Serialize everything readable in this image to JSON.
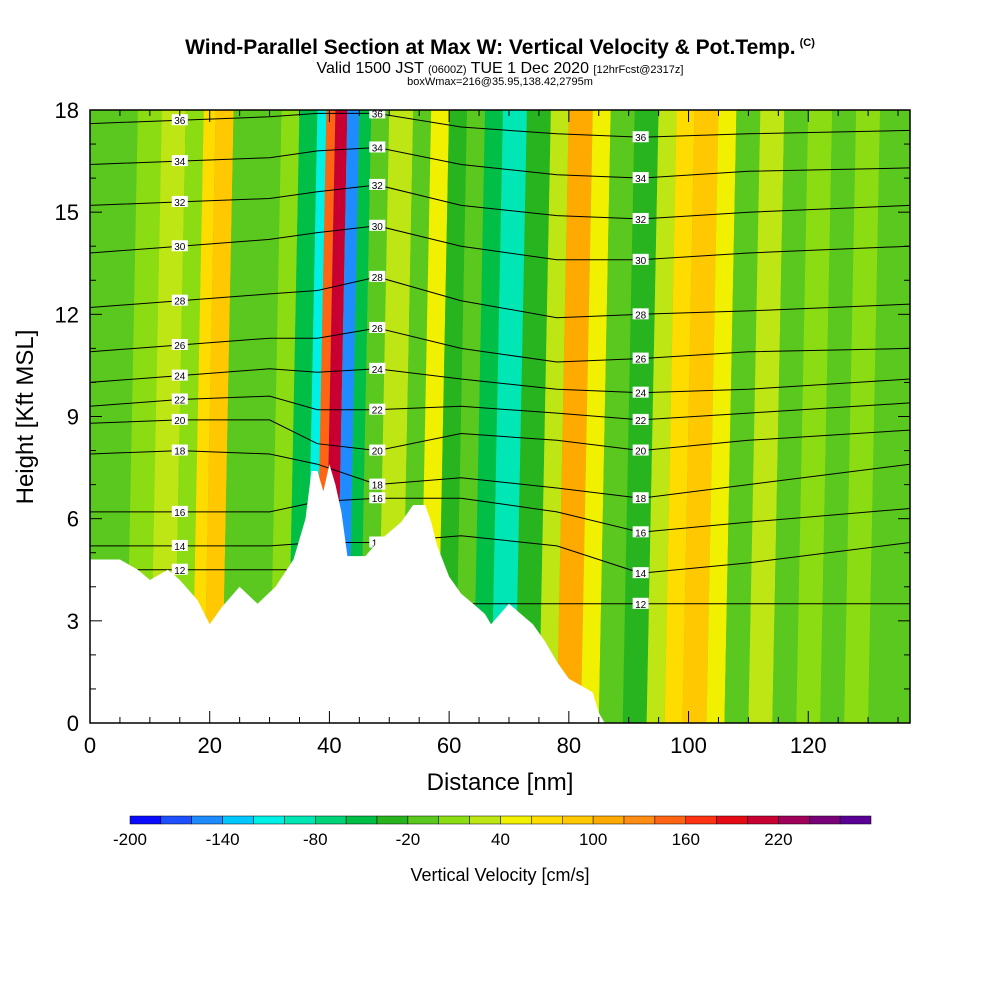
{
  "title": {
    "main": "Wind-Parallel Section at Max W: Vertical Velocity & Pot.Temp.",
    "copyright": "(C)",
    "valid_prefix": "Valid 1500 JST",
    "valid_utc": "(0600Z)",
    "valid_date": "TUE 1 Dec 2020",
    "forecast": "[12hrFcst@2317z]",
    "box_info": "boxWmax=216@35.95,138.42,2795m"
  },
  "colorbar": {
    "label": "Vertical Velocity [cm/s]",
    "tick_labels": [
      "-200",
      "-140",
      "-80",
      "-20",
      "40",
      "100",
      "160",
      "220"
    ],
    "colors": [
      "#0a0aff",
      "#1e50ff",
      "#1e8cff",
      "#00c8ff",
      "#00f0e6",
      "#00e6b4",
      "#00d278",
      "#00be46",
      "#28b41e",
      "#5ac81e",
      "#8cdc14",
      "#bee614",
      "#f0f000",
      "#ffdc00",
      "#ffc800",
      "#ffaa00",
      "#ff8c14",
      "#ff6414",
      "#ff3214",
      "#e60a14",
      "#c80032",
      "#a0005a",
      "#780078",
      "#5a0096"
    ]
  },
  "chart_data": {
    "type": "heatmap",
    "xlabel": "Distance [nm]",
    "ylabel": "Height [Kft MSL]",
    "xlim": [
      0,
      137
    ],
    "ylim": [
      0,
      18
    ],
    "xticks": [
      0,
      20,
      40,
      60,
      80,
      100,
      120
    ],
    "yticks": [
      0,
      3,
      6,
      9,
      12,
      15,
      18
    ],
    "terrain": [
      [
        0,
        4.8
      ],
      [
        5,
        4.8
      ],
      [
        8,
        4.5
      ],
      [
        10,
        4.2
      ],
      [
        13,
        4.5
      ],
      [
        15,
        4.2
      ],
      [
        18,
        3.6
      ],
      [
        20,
        2.9
      ],
      [
        22,
        3.4
      ],
      [
        25,
        4.0
      ],
      [
        28,
        3.5
      ],
      [
        31,
        4.0
      ],
      [
        34,
        4.8
      ],
      [
        36,
        6.0
      ],
      [
        37,
        7.4
      ],
      [
        38,
        7.4
      ],
      [
        39,
        6.8
      ],
      [
        40,
        7.6
      ],
      [
        41,
        7.0
      ],
      [
        42,
        6.2
      ],
      [
        43,
        4.9
      ],
      [
        46,
        4.9
      ],
      [
        48,
        5.3
      ],
      [
        50,
        5.6
      ],
      [
        52,
        5.9
      ],
      [
        54,
        6.4
      ],
      [
        56,
        6.4
      ],
      [
        57,
        5.9
      ],
      [
        58,
        5.2
      ],
      [
        60,
        4.3
      ],
      [
        62,
        3.8
      ],
      [
        64,
        3.5
      ],
      [
        66,
        3.2
      ],
      [
        67,
        2.9
      ],
      [
        69,
        3.3
      ],
      [
        70,
        3.5
      ],
      [
        72,
        3.2
      ],
      [
        74,
        2.9
      ],
      [
        76,
        2.4
      ],
      [
        78,
        1.8
      ],
      [
        80,
        1.3
      ],
      [
        82,
        1.1
      ],
      [
        84,
        0.9
      ],
      [
        85,
        0.3
      ],
      [
        86,
        0
      ],
      [
        0,
        0
      ]
    ],
    "theta_contours": [
      {
        "label": "12",
        "y": [
          4.5,
          4.5,
          4.5,
          4.5,
          4.0,
          3.5,
          3.5,
          3.5,
          3.5,
          3.5
        ]
      },
      {
        "label": "14",
        "y": [
          5.2,
          5.2,
          5.2,
          5.3,
          5.3,
          5.5,
          5.2,
          4.4,
          4.7,
          5.3
        ]
      },
      {
        "label": "16",
        "y": [
          6.2,
          6.2,
          6.2,
          6.5,
          6.6,
          6.6,
          6.2,
          5.6,
          5.9,
          6.3
        ]
      },
      {
        "label": "18",
        "y": [
          7.9,
          8.0,
          7.9,
          7.6,
          7.0,
          7.2,
          6.9,
          6.6,
          7.0,
          7.6
        ]
      },
      {
        "label": "20",
        "y": [
          8.8,
          8.9,
          8.9,
          8.2,
          8.0,
          8.5,
          8.3,
          8.0,
          8.3,
          8.6
        ]
      },
      {
        "label": "22",
        "y": [
          9.3,
          9.5,
          9.6,
          9.2,
          9.2,
          9.3,
          9.1,
          8.9,
          9.1,
          9.4
        ]
      },
      {
        "label": "24",
        "y": [
          10.0,
          10.2,
          10.4,
          10.3,
          10.4,
          10.1,
          9.8,
          9.7,
          9.8,
          10.1
        ]
      },
      {
        "label": "26",
        "y": [
          10.9,
          11.1,
          11.3,
          11.3,
          11.6,
          11.0,
          10.6,
          10.7,
          10.9,
          11.0
        ]
      },
      {
        "label": "28",
        "y": [
          12.2,
          12.4,
          12.6,
          12.7,
          13.1,
          12.4,
          11.9,
          12.0,
          12.1,
          12.3
        ]
      },
      {
        "label": "30",
        "y": [
          13.8,
          14.0,
          14.2,
          14.4,
          14.6,
          14.0,
          13.6,
          13.6,
          13.8,
          14.0
        ]
      },
      {
        "label": "32",
        "y": [
          15.2,
          15.3,
          15.4,
          15.6,
          15.8,
          15.2,
          14.9,
          14.8,
          15.0,
          15.2
        ]
      },
      {
        "label": "34",
        "y": [
          16.4,
          16.5,
          16.6,
          16.8,
          16.9,
          16.4,
          16.1,
          16.0,
          16.2,
          16.3
        ]
      },
      {
        "label": "36",
        "y": [
          17.6,
          17.7,
          17.8,
          17.9,
          17.9,
          17.5,
          17.3,
          17.2,
          17.3,
          17.4
        ]
      }
    ],
    "contour_x": [
      0,
      15,
      30,
      38,
      48,
      62,
      78,
      92,
      110,
      137
    ],
    "w_bands": [
      {
        "x0": 0,
        "x1": 8,
        "w": -10
      },
      {
        "x0": 8,
        "x1": 12,
        "w": 5
      },
      {
        "x0": 12,
        "x1": 16,
        "w": 30
      },
      {
        "x0": 16,
        "x1": 19,
        "w": 10
      },
      {
        "x0": 19,
        "x1": 21,
        "w": 60
      },
      {
        "x0": 21,
        "x1": 24,
        "w": 90
      },
      {
        "x0": 24,
        "x1": 27,
        "w": -20
      },
      {
        "x0": 27,
        "x1": 32,
        "w": -10
      },
      {
        "x0": 32,
        "x1": 35,
        "w": 15
      },
      {
        "x0": 35,
        "x1": 38,
        "w": -50
      },
      {
        "x0": 38,
        "x1": 39.5,
        "w": -120
      },
      {
        "x0": 39.5,
        "x1": 41,
        "w": 150
      },
      {
        "x0": 41,
        "x1": 43,
        "w": 216
      },
      {
        "x0": 43,
        "x1": 45,
        "w": -150
      },
      {
        "x0": 45,
        "x1": 47,
        "w": -60
      },
      {
        "x0": 47,
        "x1": 50,
        "w": -10
      },
      {
        "x0": 50,
        "x1": 54,
        "w": 20
      },
      {
        "x0": 54,
        "x1": 57,
        "w": -20
      },
      {
        "x0": 57,
        "x1": 60,
        "w": 40
      },
      {
        "x0": 60,
        "x1": 63,
        "w": -40
      },
      {
        "x0": 63,
        "x1": 66,
        "w": -20
      },
      {
        "x0": 66,
        "x1": 69,
        "w": -60
      },
      {
        "x0": 69,
        "x1": 73,
        "w": -90
      },
      {
        "x0": 73,
        "x1": 77,
        "w": -40
      },
      {
        "x0": 77,
        "x1": 80,
        "w": 30
      },
      {
        "x0": 80,
        "x1": 84,
        "w": 100
      },
      {
        "x0": 84,
        "x1": 87,
        "w": 50
      },
      {
        "x0": 87,
        "x1": 91,
        "w": -10
      },
      {
        "x0": 91,
        "x1": 95,
        "w": -30
      },
      {
        "x0": 95,
        "x1": 98,
        "w": 20
      },
      {
        "x0": 98,
        "x1": 101,
        "w": 60
      },
      {
        "x0": 101,
        "x1": 105,
        "w": 90
      },
      {
        "x0": 105,
        "x1": 108,
        "w": 40
      },
      {
        "x0": 108,
        "x1": 112,
        "w": -10
      },
      {
        "x0": 112,
        "x1": 116,
        "w": 30
      },
      {
        "x0": 116,
        "x1": 120,
        "w": -20
      },
      {
        "x0": 120,
        "x1": 124,
        "w": 10
      },
      {
        "x0": 124,
        "x1": 128,
        "w": -20
      },
      {
        "x0": 128,
        "x1": 132,
        "w": 15
      },
      {
        "x0": 132,
        "x1": 137,
        "w": -10
      }
    ]
  }
}
